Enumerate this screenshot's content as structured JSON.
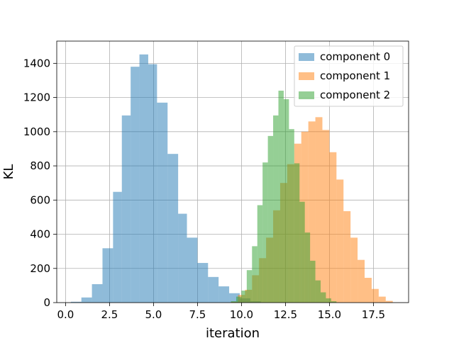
{
  "chart_data": {
    "type": "histogram",
    "xlabel": "iteration",
    "ylabel": "KL",
    "xlim": [
      -0.5,
      19.5
    ],
    "ylim": [
      0,
      1530
    ],
    "xticks": [
      "0.0",
      "2.5",
      "5.0",
      "7.5",
      "10.0",
      "12.5",
      "15.0",
      "17.5"
    ],
    "xtick_values": [
      0,
      2.5,
      5,
      7.5,
      10,
      12.5,
      15,
      17.5
    ],
    "yticks": [
      "0",
      "200",
      "400",
      "600",
      "800",
      "1000",
      "1200",
      "1400"
    ],
    "ytick_values": [
      0,
      200,
      400,
      600,
      800,
      1000,
      1200,
      1400
    ],
    "grid": true,
    "legend_position": "top-right",
    "bar_opacity": 0.5,
    "series": [
      {
        "name": "component 0",
        "color": "#1f77b4",
        "bins": [
          [
            0.3,
            0.9,
            5
          ],
          [
            0.9,
            1.5,
            30
          ],
          [
            1.5,
            2.1,
            108
          ],
          [
            2.1,
            2.7,
            318
          ],
          [
            2.7,
            3.2,
            648
          ],
          [
            3.2,
            3.7,
            1095
          ],
          [
            3.7,
            4.2,
            1380
          ],
          [
            4.2,
            4.7,
            1452
          ],
          [
            4.7,
            5.2,
            1395
          ],
          [
            5.2,
            5.8,
            1170
          ],
          [
            5.8,
            6.4,
            870
          ],
          [
            6.4,
            6.9,
            520
          ],
          [
            6.9,
            7.5,
            380
          ],
          [
            7.5,
            8.1,
            232
          ],
          [
            8.1,
            8.7,
            150
          ],
          [
            8.7,
            9.3,
            95
          ],
          [
            9.3,
            9.9,
            55
          ],
          [
            9.9,
            10.5,
            25
          ],
          [
            10.5,
            11.1,
            8
          ]
        ]
      },
      {
        "name": "component 1",
        "color": "#ff7f0e",
        "bins": [
          [
            9.4,
            9.8,
            5
          ],
          [
            9.8,
            10.2,
            45
          ],
          [
            10.2,
            10.6,
            75
          ],
          [
            10.6,
            11.0,
            160
          ],
          [
            11.0,
            11.4,
            260
          ],
          [
            11.4,
            11.8,
            380
          ],
          [
            11.8,
            12.2,
            540
          ],
          [
            12.2,
            12.6,
            700
          ],
          [
            12.6,
            13.0,
            810
          ],
          [
            13.0,
            13.4,
            930
          ],
          [
            13.4,
            13.8,
            1000
          ],
          [
            13.8,
            14.2,
            1060
          ],
          [
            14.2,
            14.6,
            1085
          ],
          [
            14.6,
            15.0,
            1010
          ],
          [
            15.0,
            15.4,
            880
          ],
          [
            15.4,
            15.8,
            720
          ],
          [
            15.8,
            16.2,
            535
          ],
          [
            16.2,
            16.6,
            380
          ],
          [
            16.6,
            17.0,
            250
          ],
          [
            17.0,
            17.4,
            145
          ],
          [
            17.4,
            17.8,
            80
          ],
          [
            17.8,
            18.2,
            35
          ],
          [
            18.2,
            18.6,
            10
          ]
        ]
      },
      {
        "name": "component 2",
        "color": "#2ca02c",
        "bins": [
          [
            9.4,
            9.7,
            8
          ],
          [
            9.7,
            10.0,
            35
          ],
          [
            10.0,
            10.3,
            70
          ],
          [
            10.3,
            10.6,
            190
          ],
          [
            10.6,
            10.9,
            330
          ],
          [
            10.9,
            11.2,
            570
          ],
          [
            11.2,
            11.5,
            820
          ],
          [
            11.5,
            11.8,
            975
          ],
          [
            11.8,
            12.1,
            1095
          ],
          [
            12.1,
            12.4,
            1240
          ],
          [
            12.4,
            12.7,
            1190
          ],
          [
            12.7,
            13.0,
            1015
          ],
          [
            13.0,
            13.3,
            815
          ],
          [
            13.3,
            13.6,
            590
          ],
          [
            13.6,
            13.9,
            410
          ],
          [
            13.9,
            14.2,
            245
          ],
          [
            14.2,
            14.5,
            130
          ],
          [
            14.5,
            14.8,
            60
          ],
          [
            14.8,
            15.1,
            25
          ],
          [
            15.1,
            15.4,
            8
          ]
        ]
      }
    ]
  }
}
